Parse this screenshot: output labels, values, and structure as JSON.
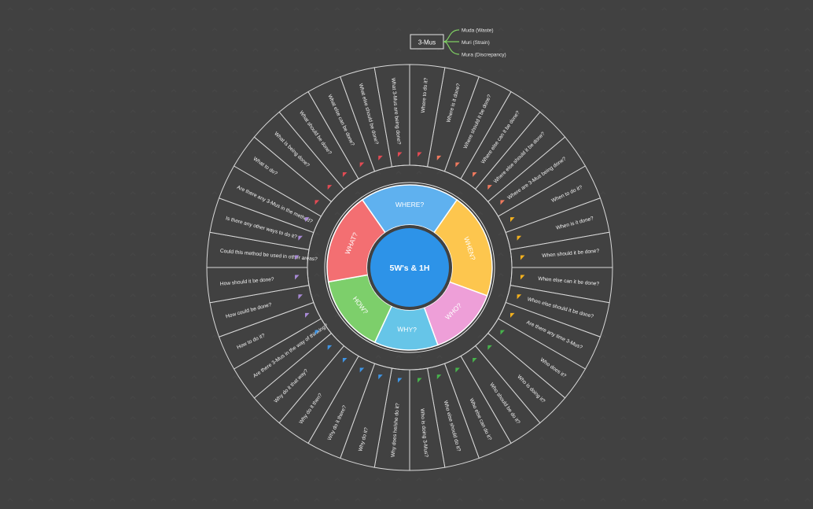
{
  "center": {
    "label": "5W's & 1H",
    "color": "#2d93e8"
  },
  "legend": {
    "title": "3-Mus",
    "items": [
      "Muda (Waste)",
      "Muri (Strain)",
      "Mura (Discrepancy)"
    ],
    "connector_color": "#7fce63"
  },
  "categories": [
    {
      "label": "WHERE?",
      "color": "#5fb1ef",
      "start": 325,
      "end": 35,
      "questions": [
        "Where is it done?",
        "Where should it be done?",
        "Where else can it be done?",
        "Where else should it be done?",
        "Where are 3-Mus being done?"
      ]
    },
    {
      "label": "WHEN?",
      "color": "#fdc64e",
      "start": 35,
      "end": 110,
      "questions": [
        "When to do it?",
        "When is it done?",
        "When should it be done?",
        "When else can it be done?",
        "When else should it be done?",
        "Are there any time 3-Mus?"
      ]
    },
    {
      "label": "WHO?",
      "color": "#ee9fd8",
      "start": 110,
      "end": 160,
      "questions": [
        "Who does it?",
        "Who is doing it?",
        "Who should be do it?",
        "Who else can do it?",
        "Who else should do it?",
        "Who is doing 3-Mus?"
      ]
    },
    {
      "label": "WHY?",
      "color": "#66c5e8",
      "start": 160,
      "end": 205,
      "questions": [
        "Why does he/she do it?",
        "Why do it?",
        "Why do it there?",
        "Why do it then?",
        "Why do it that way?",
        "Are there 3-Mus in the way of thinking?"
      ]
    },
    {
      "label": "HOW?",
      "color": "#7dcf6b",
      "start": 205,
      "end": 260,
      "questions": [
        "How to do it?",
        "How could be done?",
        "How should it be done?",
        "Could this method be used in other areas?",
        "Is there any other ways to do it?",
        "Are there any 3-Mus in the method?"
      ]
    },
    {
      "label": "WHAT?",
      "color": "#f36f72",
      "start": 260,
      "end": 325,
      "questions": [
        "What to do?",
        "What is being done?",
        "What should be done?",
        "What else can be done?",
        "What else should be done?",
        "What 3-Mus are being done?",
        "Where to do it?"
      ]
    }
  ],
  "outer_wedges": [
    {
      "text": "Where is it done?",
      "cat": 0
    },
    {
      "text": "Where should it be done?",
      "cat": 0
    },
    {
      "text": "Where else can it be done?",
      "cat": 0
    },
    {
      "text": "Where else should it be done?",
      "cat": 0
    },
    {
      "text": "Where are 3-Mus being done?",
      "cat": 0
    },
    {
      "text": "When to do it?",
      "cat": 1
    },
    {
      "text": "When is it done?",
      "cat": 1
    },
    {
      "text": "When should it be done?",
      "cat": 1
    },
    {
      "text": "When else can it be done?",
      "cat": 1
    },
    {
      "text": "When else should it be done?",
      "cat": 1
    },
    {
      "text": "Are there any time 3-Mus?",
      "cat": 1
    },
    {
      "text": "Who does it?",
      "cat": 2
    },
    {
      "text": "Who is doing it?",
      "cat": 2
    },
    {
      "text": "Who should be do it?",
      "cat": 2
    },
    {
      "text": "Who else can do it?",
      "cat": 2
    },
    {
      "text": "Who else should do it?",
      "cat": 2
    },
    {
      "text": "Who is doing 3-Mus?",
      "cat": 2
    },
    {
      "text": "Why does he/she do it?",
      "cat": 3
    },
    {
      "text": "Why do it?",
      "cat": 3
    },
    {
      "text": "Why do it there?",
      "cat": 3
    },
    {
      "text": "Why do it then?",
      "cat": 3
    },
    {
      "text": "Why do it that way?",
      "cat": 3
    },
    {
      "text": "Are there 3-Mus in the way of thinking?",
      "cat": 3
    },
    {
      "text": "How to do it?",
      "cat": 4
    },
    {
      "text": "How could be done?",
      "cat": 4
    },
    {
      "text": "How should it be done?",
      "cat": 4
    },
    {
      "text": "Could this method be used in other areas?",
      "cat": 4
    },
    {
      "text": "Is there any other ways to do it?",
      "cat": 4
    },
    {
      "text": "Are there any 3-Mus in the method?",
      "cat": 4
    },
    {
      "text": "What to do?",
      "cat": 5
    },
    {
      "text": "What is being done?",
      "cat": 5
    },
    {
      "text": "What should be done?",
      "cat": 5
    },
    {
      "text": "What else can be done?",
      "cat": 5
    },
    {
      "text": "What else should be done?",
      "cat": 5
    },
    {
      "text": "What 3-Mus are being done?",
      "cat": 5
    },
    {
      "text": "Where to do it?",
      "cat": 5
    }
  ],
  "flag_colors": [
    "#f07a5e",
    "#f2b01e",
    "#47b34c",
    "#3e95e6",
    "#a98ad6",
    "#e24b54"
  ]
}
